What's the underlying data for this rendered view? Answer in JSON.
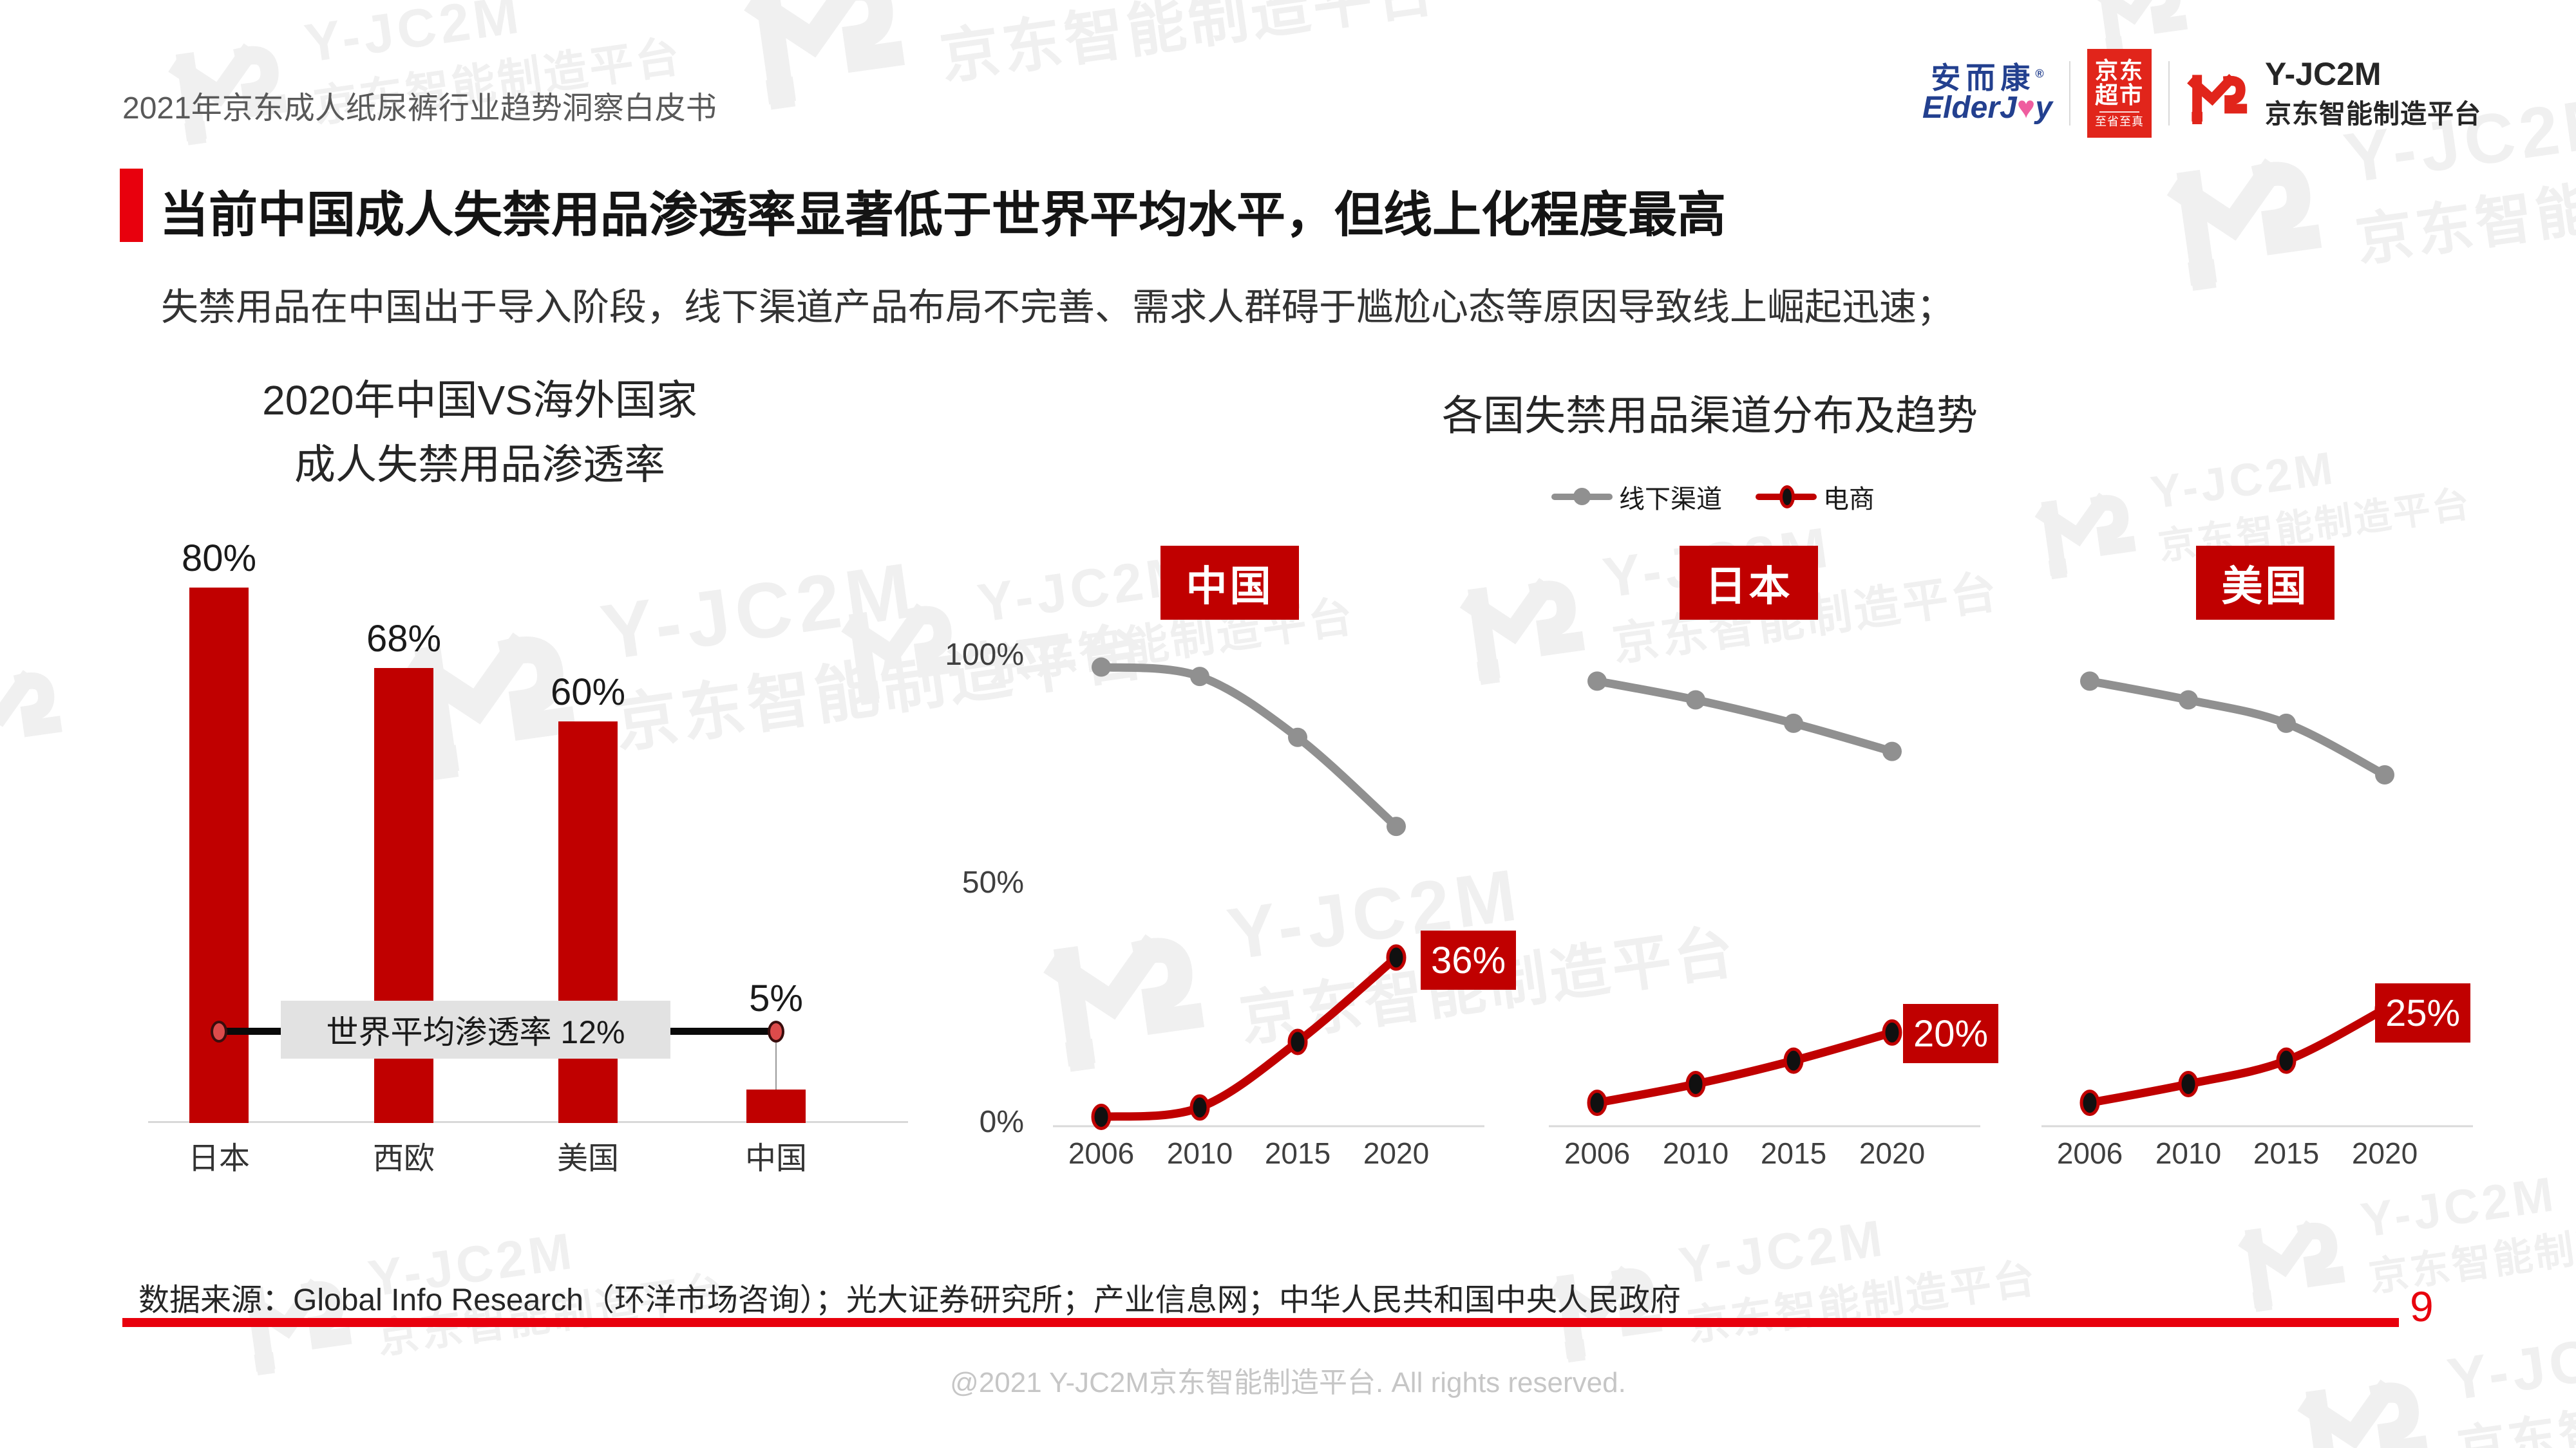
{
  "page": {
    "header": "2021年京东成人纸尿裤行业趋势洞察白皮书",
    "title": "当前中国成人失禁用品渗透率显著低于世界平均水平，但线上化程度最高",
    "subtitle": "失禁用品在中国出于导入阶段，线下渠道产品布局不完善、需求人群碍于尴尬心态等原因导致线上崛起迅速；",
    "source": "数据来源：Global Info Research（环洋市场咨询）；光大证券研究所；产业信息网；中华人民共和国中央人民政府",
    "footer": "@2021 Y-JC2M京东智能制造平台. All rights reserved.",
    "page_number": "9"
  },
  "brand": {
    "elderjoy": {
      "cn": "安而康",
      "reg": "®",
      "en_pre": "ElderJ",
      "heart": "♥",
      "en_post": "y"
    },
    "jd": {
      "line1": "京东",
      "line2": "超市",
      "sub": "至省至真"
    },
    "yjc2m": {
      "name": "Y-JC2M",
      "sub": "京东智能制造平台"
    }
  },
  "watermark": {
    "brand": "Y-JC2M",
    "sub": "京东智能制造平台"
  },
  "colors": {
    "accent_red": "#e8000d",
    "dark_red": "#c00000",
    "gray_line": "#909090",
    "jd_red": "#e1251b",
    "annotation_box": "#e2e2e2",
    "watermark": "#f0f0f0"
  },
  "chart_data": [
    {
      "type": "bar",
      "title_line1": "2020年中国VS海外国家",
      "title_line2": "成人失禁用品渗透率",
      "categories": [
        "日本",
        "西欧",
        "美国",
        "中国"
      ],
      "values": [
        80,
        68,
        60,
        5
      ],
      "value_labels": [
        "80%",
        "68%",
        "60%",
        "5%"
      ],
      "bar_color": "#c00000",
      "ylim": [
        0,
        100
      ],
      "grid": false,
      "annotation": {
        "label": "世界平均渗透率 12%",
        "value": 12
      }
    },
    {
      "type": "line",
      "title": "各国失禁用品渠道分布及趋势",
      "x": [
        2006,
        2010,
        2015,
        2020
      ],
      "ylabels": [
        "100%",
        "50%",
        "0%"
      ],
      "ylim": [
        0,
        100
      ],
      "legend": [
        {
          "name": "线下渠道",
          "color": "#909090"
        },
        {
          "name": "电商",
          "color": "#c00000"
        }
      ],
      "panels": [
        {
          "country": "中国",
          "offline": [
            98,
            96,
            83,
            64
          ],
          "ecommerce": [
            2,
            4,
            18,
            36
          ],
          "ecommerce_label": "36%"
        },
        {
          "country": "日本",
          "offline": [
            95,
            91,
            86,
            80
          ],
          "ecommerce": [
            5,
            9,
            14,
            20
          ],
          "ecommerce_label": "20%"
        },
        {
          "country": "美国",
          "offline": [
            95,
            91,
            86,
            75
          ],
          "ecommerce": [
            5,
            9,
            14,
            25
          ],
          "ecommerce_label": "25%"
        }
      ]
    }
  ]
}
